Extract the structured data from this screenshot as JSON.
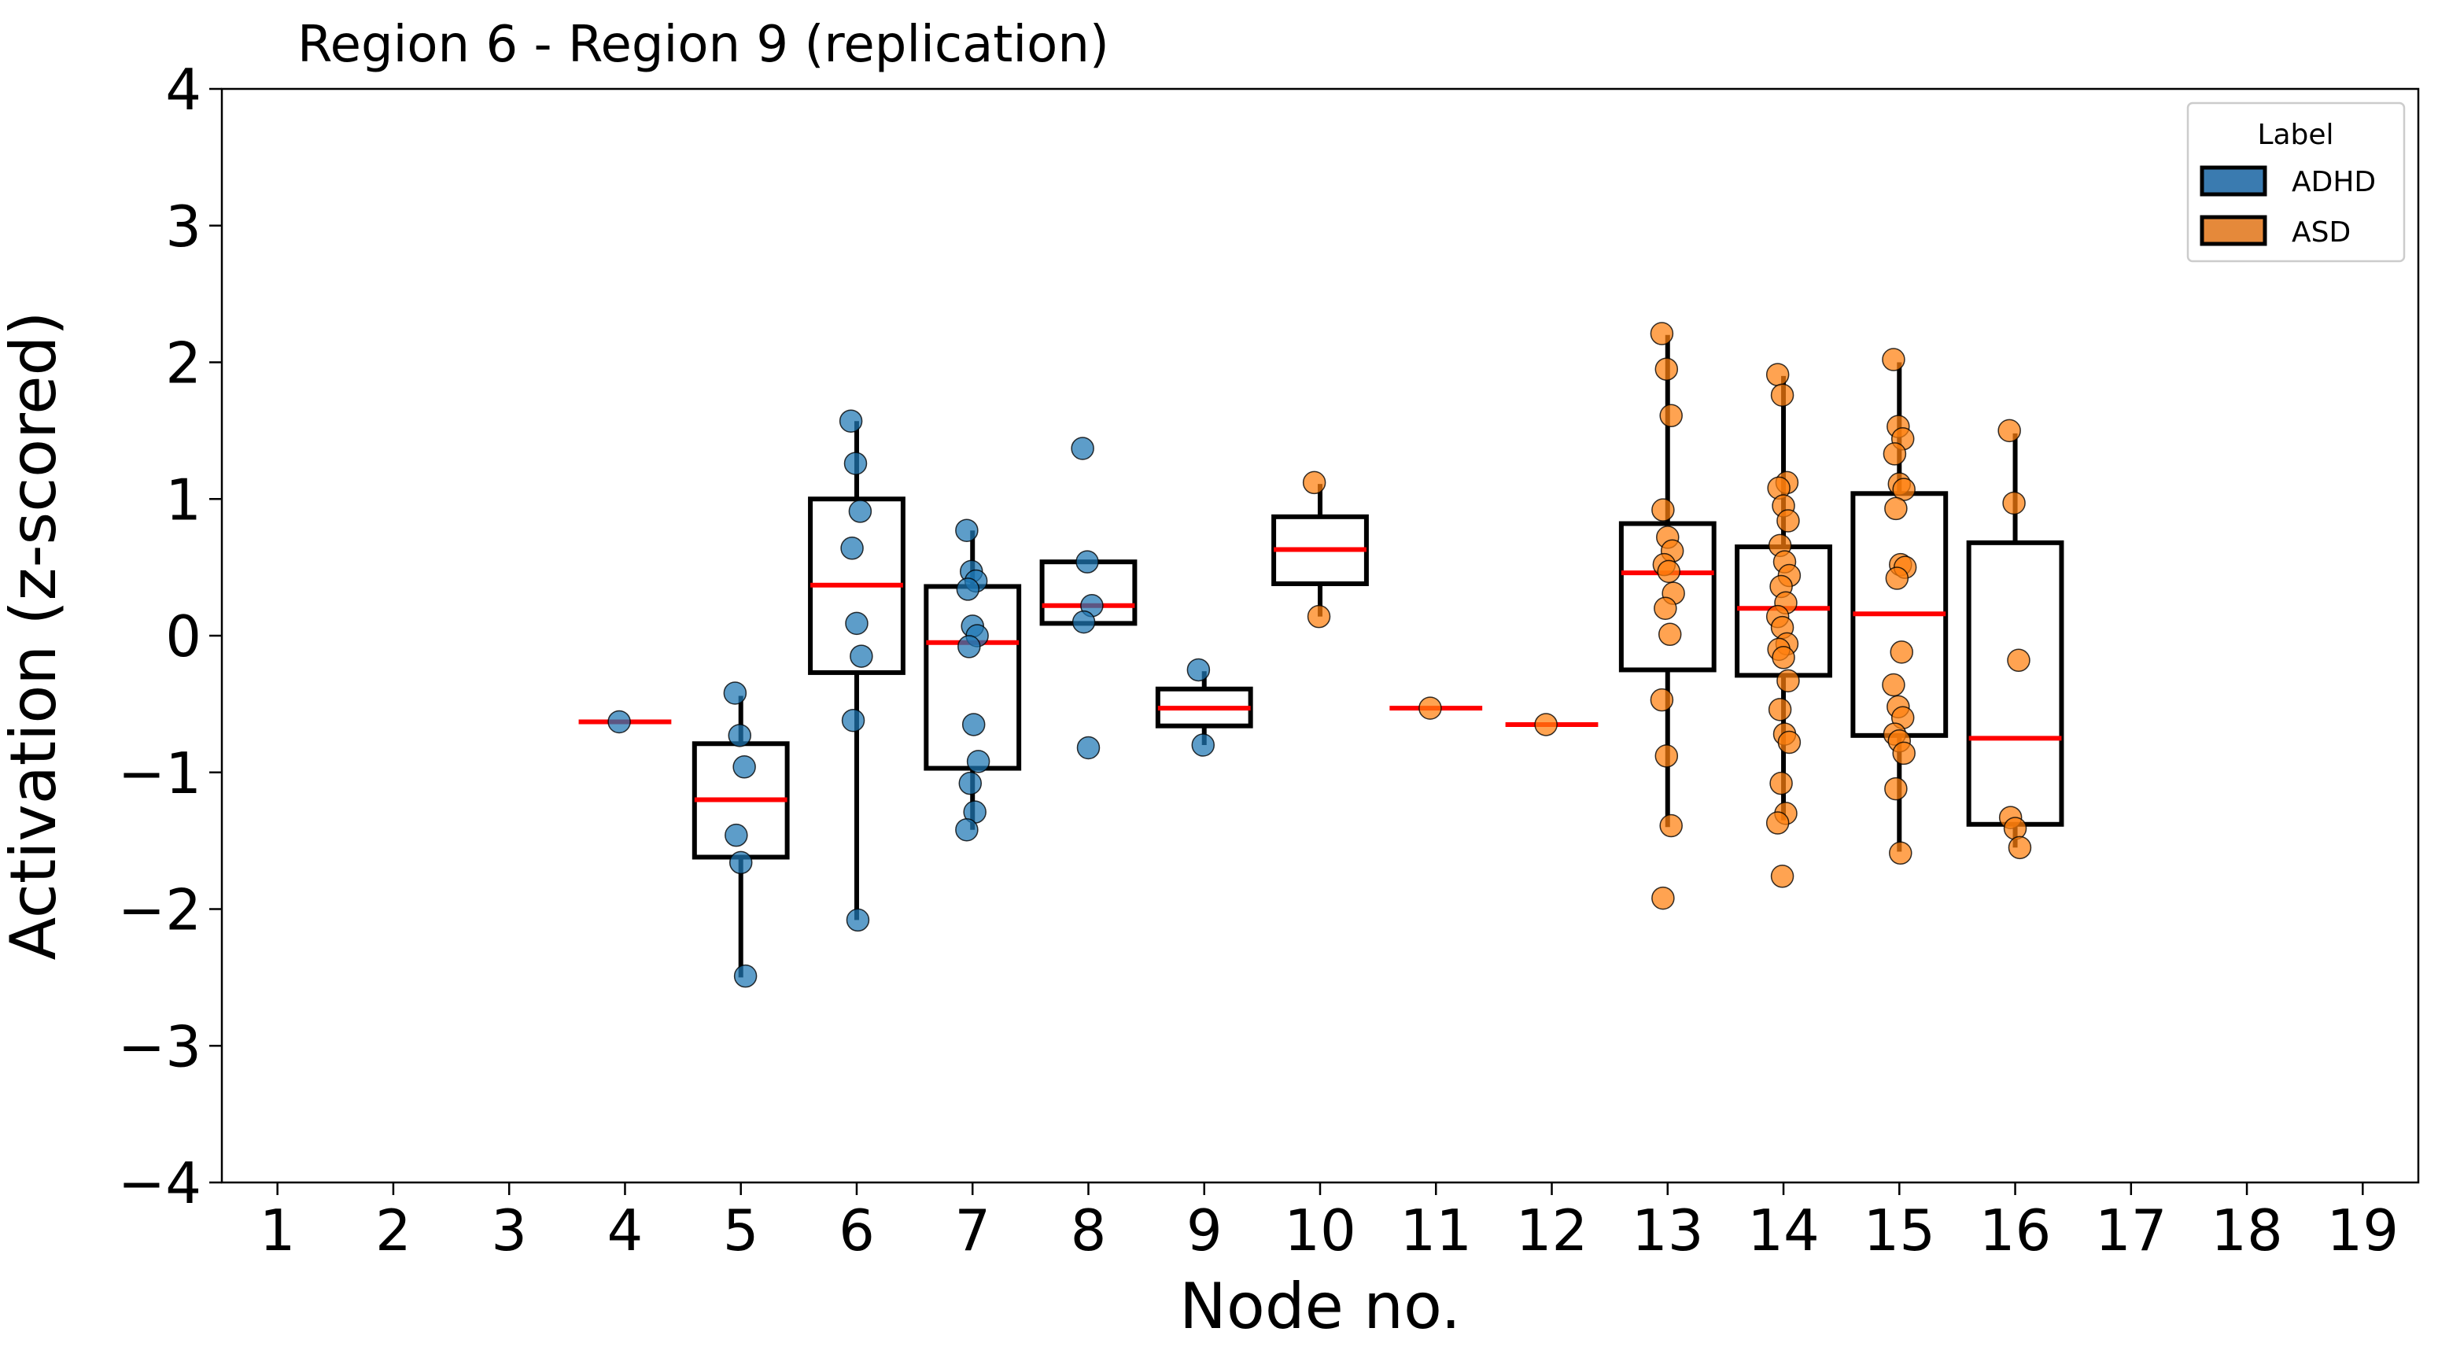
{
  "chart_data": {
    "type": "box",
    "title": "Region 6 - Region 9 (replication)",
    "xlabel": "Node no.",
    "ylabel": "Activation (z-scored)",
    "ylim": [
      -4,
      4
    ],
    "yticks": [
      -4,
      -3,
      -2,
      -1,
      0,
      1,
      2,
      3,
      4
    ],
    "ytick_labels": [
      "−4",
      "−3",
      "−2",
      "−1",
      "0",
      "1",
      "2",
      "3",
      "4"
    ],
    "xticks": [
      1,
      2,
      3,
      4,
      5,
      6,
      7,
      8,
      9,
      10,
      11,
      12,
      13,
      14,
      15,
      16,
      17,
      18,
      19
    ],
    "xtick_labels": [
      "1",
      "2",
      "3",
      "4",
      "5",
      "6",
      "7",
      "8",
      "9",
      "10",
      "11",
      "12",
      "13",
      "14",
      "15",
      "16",
      "17",
      "18",
      "19"
    ],
    "legend": {
      "title": "Label",
      "position": "top-right",
      "entries": [
        {
          "label": "ADHD",
          "color": "#1f77b4"
        },
        {
          "label": "ASD",
          "color": "#ff7f0e"
        }
      ]
    },
    "median_color": "#ff0000",
    "box_color": "#000000",
    "groups": [
      {
        "node": 4,
        "label": "ADHD",
        "median": -0.63,
        "q1": -0.63,
        "q3": -0.63,
        "whisker_low": -0.63,
        "whisker_high": -0.63,
        "points": [
          -0.63
        ]
      },
      {
        "node": 5,
        "label": "ADHD",
        "median": -1.2,
        "q1": -1.62,
        "q3": -0.79,
        "whisker_low": -2.5,
        "whisker_high": -0.44,
        "points": [
          -0.42,
          -0.73,
          -0.96,
          -1.46,
          -1.66,
          -2.49
        ]
      },
      {
        "node": 6,
        "label": "ADHD",
        "median": 0.37,
        "q1": -0.27,
        "q3": 1.0,
        "whisker_low": -2.08,
        "whisker_high": 1.57,
        "points": [
          1.57,
          1.26,
          0.91,
          0.64,
          0.09,
          -0.15,
          -0.62,
          -2.08
        ]
      },
      {
        "node": 7,
        "label": "ADHD",
        "median": -0.05,
        "q1": -0.97,
        "q3": 0.36,
        "whisker_low": -1.42,
        "whisker_high": 0.77,
        "points": [
          0.77,
          0.47,
          0.4,
          0.34,
          0.07,
          0.0,
          -0.08,
          -0.65,
          -0.92,
          -1.08,
          -1.29,
          -1.42
        ]
      },
      {
        "node": 8,
        "label": "ADHD",
        "median": 0.22,
        "q1": 0.09,
        "q3": 0.54,
        "whisker_low": 0.09,
        "whisker_high": 0.54,
        "points": [
          1.37,
          0.54,
          0.22,
          0.1,
          -0.82
        ]
      },
      {
        "node": 9,
        "label": "ADHD",
        "median": -0.53,
        "q1": -0.66,
        "q3": -0.39,
        "whisker_low": -0.8,
        "whisker_high": -0.26,
        "points": [
          -0.25,
          -0.8
        ]
      },
      {
        "node": 10,
        "label": "ASD",
        "median": 0.63,
        "q1": 0.38,
        "q3": 0.87,
        "whisker_low": 0.14,
        "whisker_high": 1.11,
        "points": [
          1.12,
          0.14
        ]
      },
      {
        "node": 11,
        "label": "ASD",
        "median": -0.53,
        "q1": -0.53,
        "q3": -0.53,
        "whisker_low": -0.53,
        "whisker_high": -0.53,
        "points": [
          -0.53
        ]
      },
      {
        "node": 12,
        "label": "ASD",
        "median": -0.65,
        "q1": -0.65,
        "q3": -0.65,
        "whisker_low": -0.65,
        "whisker_high": -0.65,
        "points": [
          -0.65
        ]
      },
      {
        "node": 13,
        "label": "ASD",
        "median": 0.46,
        "q1": -0.25,
        "q3": 0.82,
        "whisker_low": -1.4,
        "whisker_high": 2.2,
        "points": [
          2.21,
          1.95,
          1.61,
          0.92,
          0.72,
          0.62,
          0.52,
          0.47,
          0.31,
          0.2,
          0.01,
          -0.47,
          -0.88,
          -1.39,
          -1.92
        ]
      },
      {
        "node": 14,
        "label": "ASD",
        "median": 0.2,
        "q1": -0.29,
        "q3": 0.65,
        "whisker_low": -1.35,
        "whisker_high": 1.9,
        "points": [
          1.91,
          1.76,
          1.12,
          1.08,
          0.95,
          0.84,
          0.66,
          0.54,
          0.44,
          0.36,
          0.24,
          0.14,
          0.06,
          -0.06,
          -0.1,
          -0.16,
          -0.33,
          -0.54,
          -0.72,
          -0.78,
          -1.08,
          -1.3,
          -1.37,
          -1.76
        ]
      },
      {
        "node": 15,
        "label": "ASD",
        "median": 0.16,
        "q1": -0.73,
        "q3": 1.04,
        "whisker_low": -1.58,
        "whisker_high": 2.0,
        "points": [
          2.02,
          1.53,
          1.44,
          1.33,
          1.11,
          1.07,
          0.93,
          0.52,
          0.5,
          0.42,
          -0.12,
          -0.36,
          -0.52,
          -0.6,
          -0.72,
          -0.77,
          -0.86,
          -1.12,
          -1.59
        ]
      },
      {
        "node": 16,
        "label": "ASD",
        "median": -0.75,
        "q1": -1.38,
        "q3": 0.68,
        "whisker_low": -1.55,
        "whisker_high": 1.48,
        "points": [
          1.5,
          0.97,
          -0.18,
          -1.33,
          -1.41,
          -1.55
        ]
      }
    ]
  }
}
